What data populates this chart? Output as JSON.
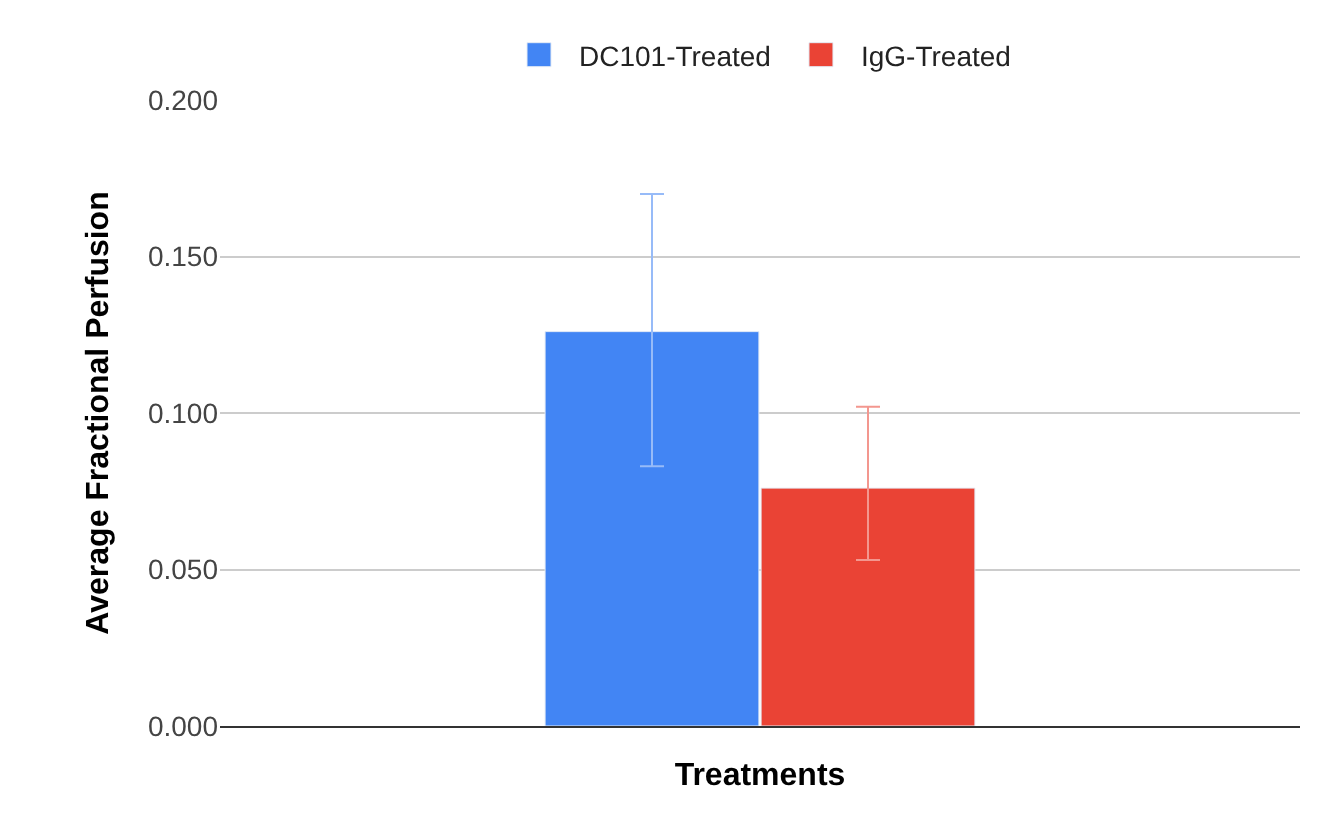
{
  "chart_data": {
    "type": "bar",
    "xlabel": "Treatments",
    "ylabel": "Average Fractional Perfusion",
    "categories": [
      null
    ],
    "series": [
      {
        "name": "DC101-Treated",
        "color": "#4285f4",
        "values": [
          0.126
        ],
        "errors": [
          [
            0.083,
            0.17
          ]
        ]
      },
      {
        "name": "IgG-Treated",
        "color": "#ea4335",
        "values": [
          0.076
        ],
        "errors": [
          [
            0.053,
            0.102
          ]
        ]
      }
    ],
    "ylim": [
      0,
      0.2
    ],
    "yticks": [
      {
        "value": 0,
        "label": "0.000"
      },
      {
        "value": 0.05,
        "label": "0.050"
      },
      {
        "value": 0.1,
        "label": "0.100"
      },
      {
        "value": 0.15,
        "label": "0.150"
      },
      {
        "value": 0.2,
        "label": "0.200"
      }
    ],
    "grid": "y",
    "legend": "top"
  }
}
